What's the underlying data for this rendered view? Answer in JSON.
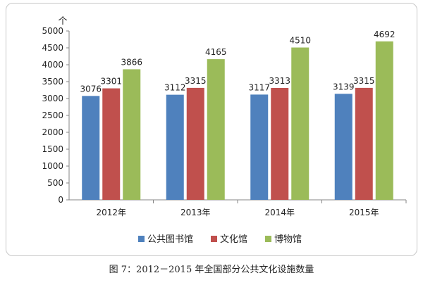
{
  "chart_data": {
    "type": "bar",
    "title": "",
    "unit_label": "个",
    "categories": [
      "2012年",
      "2013年",
      "2014年",
      "2015年"
    ],
    "series": [
      {
        "name": "公共图书馆",
        "color": "#4f81bd",
        "values": [
          3076,
          3112,
          3117,
          3139
        ]
      },
      {
        "name": "文化馆",
        "color": "#c0504d",
        "values": [
          3301,
          3315,
          3313,
          3315
        ]
      },
      {
        "name": "博物馆",
        "color": "#9bbb59",
        "values": [
          3866,
          4165,
          4510,
          4692
        ]
      }
    ],
    "ylim": [
      0,
      5000
    ],
    "ytick_step": 500,
    "legend_position": "bottom",
    "grid": false
  },
  "caption": "图 7：2012－2015 年全国部分公共文化设施数量"
}
